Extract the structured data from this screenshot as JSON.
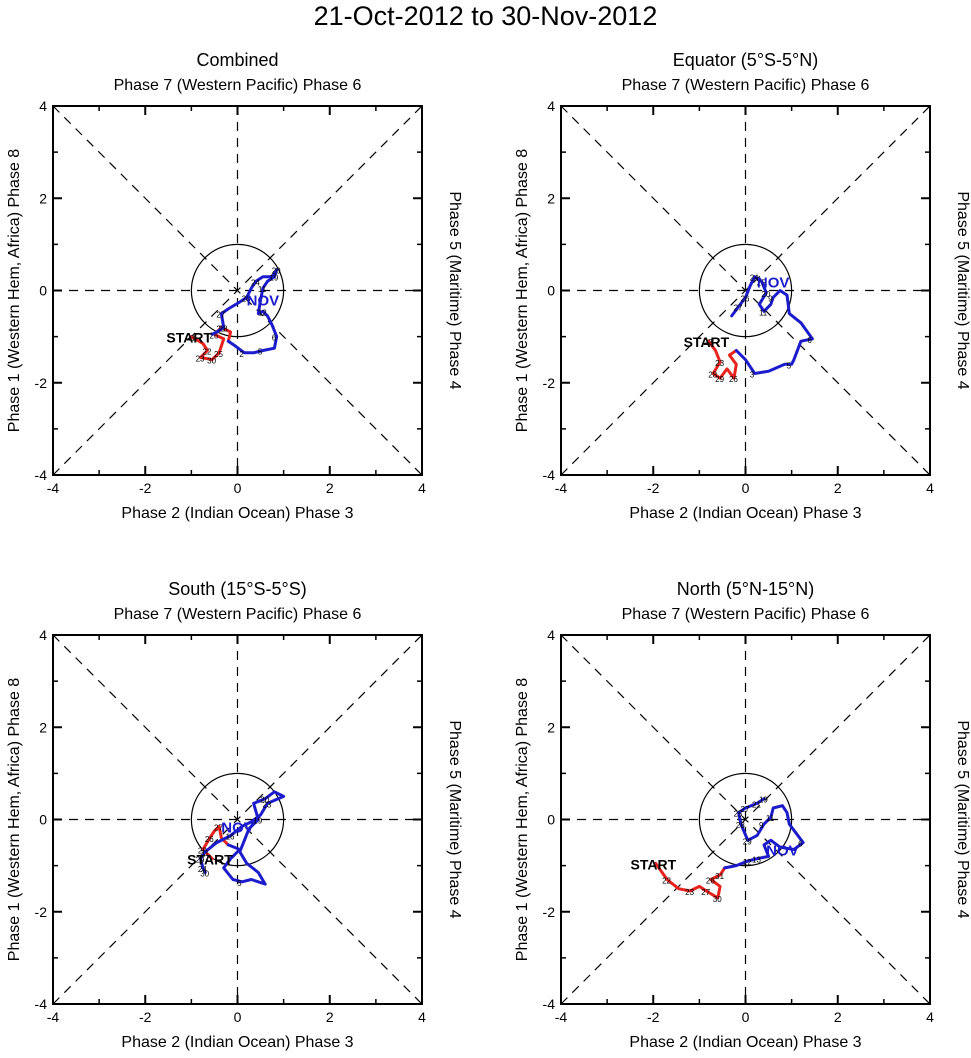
{
  "title": "21-Oct-2012 to 30-Nov-2012",
  "colors": {
    "oct": "#e8221c",
    "nov": "#1c1ccc",
    "text": "#000000",
    "axis": "#000000"
  },
  "chart_data": [
    {
      "type": "line",
      "title": "Combined",
      "top_label": "Phase 7 (Western Pacific) Phase 6",
      "bottom_label": "Phase 2 (Indian Ocean) Phase 3",
      "left_label": "Phase 1 (Western Hem, Africa) Phase 8",
      "right_label": "Phase 5 (Maritime) Phase 4",
      "xlim": [
        -4,
        4
      ],
      "ylim": [
        -4,
        4
      ],
      "xticks": [
        "-4",
        "-2",
        "0",
        "2",
        "4"
      ],
      "yticks": [
        "4",
        "2",
        "0",
        "-2",
        "-4"
      ],
      "start_label": "START",
      "start_point": [
        -1.0,
        -1.0
      ],
      "month_label": "NOV",
      "month_label_point": [
        0.55,
        -0.2
      ],
      "series": [
        {
          "name": "October",
          "color_key": "oct",
          "points": [
            [
              -1.0,
              -1.0
            ],
            [
              -0.75,
              -1.15
            ],
            [
              -0.65,
              -1.3
            ],
            [
              -0.8,
              -1.45
            ],
            [
              -0.55,
              -1.5
            ],
            [
              -0.4,
              -1.35
            ],
            [
              -0.3,
              -1.05
            ],
            [
              -0.5,
              -0.95
            ],
            [
              -0.35,
              -0.8
            ],
            [
              -0.15,
              -0.9
            ],
            [
              -0.2,
              -1.1
            ]
          ],
          "labels": [
            [
              0,
              "21"
            ],
            [
              2,
              "22"
            ],
            [
              3,
              "23"
            ],
            [
              4,
              "30"
            ],
            [
              5,
              "25"
            ],
            [
              7,
              "26"
            ],
            [
              8,
              "28"
            ]
          ]
        },
        {
          "name": "November",
          "color_key": "nov",
          "points": [
            [
              -0.2,
              -1.1
            ],
            [
              -0.05,
              -1.2
            ],
            [
              0.15,
              -1.35
            ],
            [
              0.35,
              -1.35
            ],
            [
              0.55,
              -1.3
            ],
            [
              0.8,
              -1.25
            ],
            [
              0.85,
              -1.0
            ],
            [
              0.75,
              -0.75
            ],
            [
              0.65,
              -0.55
            ],
            [
              0.55,
              -0.45
            ],
            [
              0.45,
              -0.5
            ],
            [
              0.5,
              -0.2
            ],
            [
              0.55,
              0.05
            ],
            [
              0.65,
              0.2
            ],
            [
              0.8,
              0.3
            ],
            [
              0.85,
              0.45
            ],
            [
              0.75,
              0.3
            ],
            [
              0.55,
              0.3
            ],
            [
              0.4,
              0.2
            ],
            [
              0.3,
              0.05
            ],
            [
              0.2,
              -0.15
            ],
            [
              0.05,
              -0.25
            ],
            [
              -0.2,
              -0.4
            ],
            [
              -0.35,
              -0.5
            ],
            [
              -0.3,
              -0.8
            ],
            [
              -0.45,
              -0.9
            ],
            [
              -0.55,
              -0.95
            ]
          ],
          "labels": [
            [
              2,
              "2"
            ],
            [
              4,
              "5"
            ],
            [
              6,
              "6"
            ],
            [
              9,
              "12"
            ],
            [
              12,
              "11"
            ],
            [
              14,
              "19"
            ],
            [
              15,
              "20"
            ],
            [
              18,
              "24"
            ],
            [
              20,
              "25"
            ],
            [
              23,
              "27"
            ],
            [
              24,
              "28"
            ]
          ]
        }
      ]
    },
    {
      "type": "line",
      "title": "Equator (5°S-5°N)",
      "top_label": "Phase 7 (Western Pacific) Phase 6",
      "bottom_label": "Phase 2 (Indian Ocean) Phase 3",
      "left_label": "Phase 1 (Western Hem, Africa) Phase 8",
      "right_label": "Phase 5 (Maritime) Phase 4",
      "xlim": [
        -4,
        4
      ],
      "ylim": [
        -4,
        4
      ],
      "xticks": [
        "-4",
        "-2",
        "0",
        "2",
        "4"
      ],
      "yticks": [
        "4",
        "2",
        "0",
        "-2",
        "-4"
      ],
      "start_label": "START",
      "start_point": [
        -0.8,
        -1.1
      ],
      "month_label": "NOV",
      "month_label_point": [
        0.6,
        0.2
      ],
      "series": [
        {
          "name": "October",
          "color_key": "oct",
          "points": [
            [
              -0.8,
              -1.1
            ],
            [
              -0.65,
              -1.3
            ],
            [
              -0.55,
              -1.55
            ],
            [
              -0.7,
              -1.8
            ],
            [
              -0.55,
              -1.9
            ],
            [
              -0.4,
              -1.7
            ],
            [
              -0.25,
              -1.9
            ],
            [
              -0.2,
              -1.6
            ],
            [
              -0.35,
              -1.4
            ],
            [
              -0.2,
              -1.3
            ]
          ],
          "labels": [
            [
              0,
              "22"
            ],
            [
              2,
              "23"
            ],
            [
              3,
              "28"
            ],
            [
              4,
              "29"
            ],
            [
              6,
              "26"
            ]
          ]
        },
        {
          "name": "November",
          "color_key": "nov",
          "points": [
            [
              -0.2,
              -1.3
            ],
            [
              0.0,
              -1.5
            ],
            [
              0.2,
              -1.8
            ],
            [
              0.5,
              -1.75
            ],
            [
              0.85,
              -1.6
            ],
            [
              1.0,
              -1.6
            ],
            [
              1.05,
              -1.5
            ],
            [
              1.2,
              -1.1
            ],
            [
              1.45,
              -1.05
            ],
            [
              1.2,
              -0.7
            ],
            [
              0.95,
              -0.5
            ],
            [
              0.9,
              -0.1
            ],
            [
              0.75,
              0.0
            ],
            [
              0.6,
              -0.15
            ],
            [
              0.55,
              -0.3
            ],
            [
              0.4,
              -0.45
            ],
            [
              0.3,
              -0.3
            ],
            [
              0.45,
              -0.05
            ],
            [
              0.35,
              0.2
            ],
            [
              0.2,
              0.3
            ],
            [
              0.1,
              0.1
            ],
            [
              0.0,
              -0.15
            ],
            [
              -0.15,
              -0.35
            ],
            [
              -0.3,
              -0.55
            ]
          ],
          "labels": [
            [
              2,
              "3"
            ],
            [
              5,
              "5"
            ],
            [
              8,
              "6"
            ],
            [
              13,
              "9"
            ],
            [
              15,
              "11"
            ],
            [
              17,
              "20"
            ],
            [
              18,
              "25"
            ],
            [
              19,
              "24"
            ],
            [
              21,
              "26"
            ],
            [
              22,
              "27"
            ]
          ]
        }
      ]
    },
    {
      "type": "line",
      "title": "South (15°S-5°S)",
      "top_label": "Phase 7 (Western Pacific) Phase 6",
      "bottom_label": "Phase 2 (Indian Ocean) Phase 3",
      "left_label": "Phase 1 (Western Hem, Africa) Phase 8",
      "right_label": "Phase 5 (Maritime) Phase 4",
      "xlim": [
        -4,
        4
      ],
      "ylim": [
        -4,
        4
      ],
      "xticks": [
        "-4",
        "-2",
        "0",
        "2",
        "4"
      ],
      "yticks": [
        "4",
        "2",
        "0",
        "-2",
        "-4"
      ],
      "start_label": "START",
      "start_point": [
        -0.55,
        -0.85
      ],
      "month_label": "NOV",
      "month_label_point": [
        0.0,
        -0.15
      ],
      "series": [
        {
          "name": "October",
          "color_key": "oct",
          "points": [
            [
              -0.55,
              -0.85
            ],
            [
              -0.75,
              -0.65
            ],
            [
              -0.6,
              -0.4
            ],
            [
              -0.5,
              -0.25
            ],
            [
              -0.4,
              -0.15
            ],
            [
              -0.35,
              -0.4
            ],
            [
              -0.2,
              -0.55
            ]
          ],
          "labels": [
            [
              1,
              "28"
            ],
            [
              2,
              "26"
            ],
            [
              4,
              "27"
            ]
          ]
        },
        {
          "name": "November",
          "color_key": "nov",
          "points": [
            [
              -0.2,
              -0.55
            ],
            [
              0.05,
              -0.65
            ],
            [
              -0.15,
              -0.85
            ],
            [
              -0.3,
              -1.05
            ],
            [
              -0.1,
              -1.3
            ],
            [
              0.1,
              -1.35
            ],
            [
              0.3,
              -1.3
            ],
            [
              0.6,
              -1.4
            ],
            [
              0.45,
              -1.15
            ],
            [
              0.2,
              -0.95
            ],
            [
              0.05,
              -0.7
            ],
            [
              0.15,
              -0.45
            ],
            [
              0.25,
              -0.2
            ],
            [
              0.45,
              0.0
            ],
            [
              0.35,
              0.35
            ],
            [
              0.6,
              0.45
            ],
            [
              0.8,
              0.6
            ],
            [
              1.0,
              0.5
            ],
            [
              0.65,
              0.35
            ],
            [
              0.5,
              0.1
            ],
            [
              0.3,
              -0.05
            ],
            [
              0.1,
              -0.15
            ],
            [
              -0.15,
              -0.35
            ],
            [
              -0.45,
              -0.5
            ],
            [
              -0.7,
              -0.7
            ],
            [
              -0.8,
              -0.85
            ],
            [
              -0.75,
              -1.05
            ],
            [
              -0.7,
              -1.15
            ]
          ],
          "labels": [
            [
              5,
              "5"
            ],
            [
              13,
              "19"
            ],
            [
              15,
              "20"
            ],
            [
              18,
              "23"
            ],
            [
              22,
              "16"
            ],
            [
              24,
              "31"
            ],
            [
              25,
              "29"
            ],
            [
              26,
              "24"
            ],
            [
              27,
              "30"
            ]
          ]
        }
      ]
    },
    {
      "type": "line",
      "title": "North (5°N-15°N)",
      "top_label": "Phase 7 (Western Pacific) Phase 6",
      "bottom_label": "Phase 2 (Indian Ocean) Phase 3",
      "left_label": "Phase 1 (Western Hem, Africa) Phase 8",
      "right_label": "Phase 5 (Maritime) Phase 4",
      "xlim": [
        -4,
        4
      ],
      "ylim": [
        -4,
        4
      ],
      "xticks": [
        "-4",
        "-2",
        "0",
        "2",
        "4"
      ],
      "yticks": [
        "4",
        "2",
        "0",
        "-2",
        "-4"
      ],
      "start_label": "START",
      "start_point": [
        -1.95,
        -0.95
      ],
      "month_label": "NOV",
      "month_label_point": [
        0.8,
        -0.65
      ],
      "series": [
        {
          "name": "October",
          "color_key": "oct",
          "points": [
            [
              -1.95,
              -0.95
            ],
            [
              -1.7,
              -1.3
            ],
            [
              -1.45,
              -1.5
            ],
            [
              -1.2,
              -1.55
            ],
            [
              -1.0,
              -1.45
            ],
            [
              -0.85,
              -1.55
            ],
            [
              -0.6,
              -1.7
            ],
            [
              -0.55,
              -1.45
            ],
            [
              -0.75,
              -1.3
            ],
            [
              -0.55,
              -1.2
            ],
            [
              -0.45,
              -1.05
            ]
          ],
          "labels": [
            [
              1,
              "22"
            ],
            [
              3,
              "23"
            ],
            [
              5,
              "27"
            ],
            [
              6,
              "30"
            ],
            [
              8,
              "26"
            ],
            [
              9,
              "31"
            ]
          ]
        },
        {
          "name": "November",
          "color_key": "nov",
          "points": [
            [
              -0.45,
              -1.05
            ],
            [
              -0.2,
              -1.0
            ],
            [
              0.05,
              -0.9
            ],
            [
              0.25,
              -0.85
            ],
            [
              0.5,
              -0.8
            ],
            [
              0.4,
              -0.55
            ],
            [
              0.55,
              -0.45
            ],
            [
              0.75,
              -0.6
            ],
            [
              1.05,
              -0.65
            ],
            [
              1.25,
              -0.5
            ],
            [
              1.1,
              -0.3
            ],
            [
              0.95,
              -0.1
            ],
            [
              0.9,
              0.15
            ],
            [
              0.8,
              0.3
            ],
            [
              0.6,
              0.25
            ],
            [
              0.55,
              0.05
            ],
            [
              0.4,
              -0.1
            ],
            [
              0.25,
              -0.35
            ],
            [
              0.05,
              -0.45
            ],
            [
              -0.1,
              -0.1
            ],
            [
              -0.15,
              0.15
            ],
            [
              0.0,
              0.25
            ],
            [
              0.25,
              0.35
            ],
            [
              0.4,
              0.45
            ]
          ],
          "labels": [
            [
              2,
              "12"
            ],
            [
              3,
              "13"
            ],
            [
              9,
              "6"
            ],
            [
              15,
              "11"
            ],
            [
              16,
              "9"
            ],
            [
              18,
              "29"
            ],
            [
              19,
              "28"
            ],
            [
              20,
              "25"
            ],
            [
              21,
              "27"
            ],
            [
              22,
              "21"
            ],
            [
              23,
              "19"
            ]
          ]
        }
      ]
    }
  ]
}
